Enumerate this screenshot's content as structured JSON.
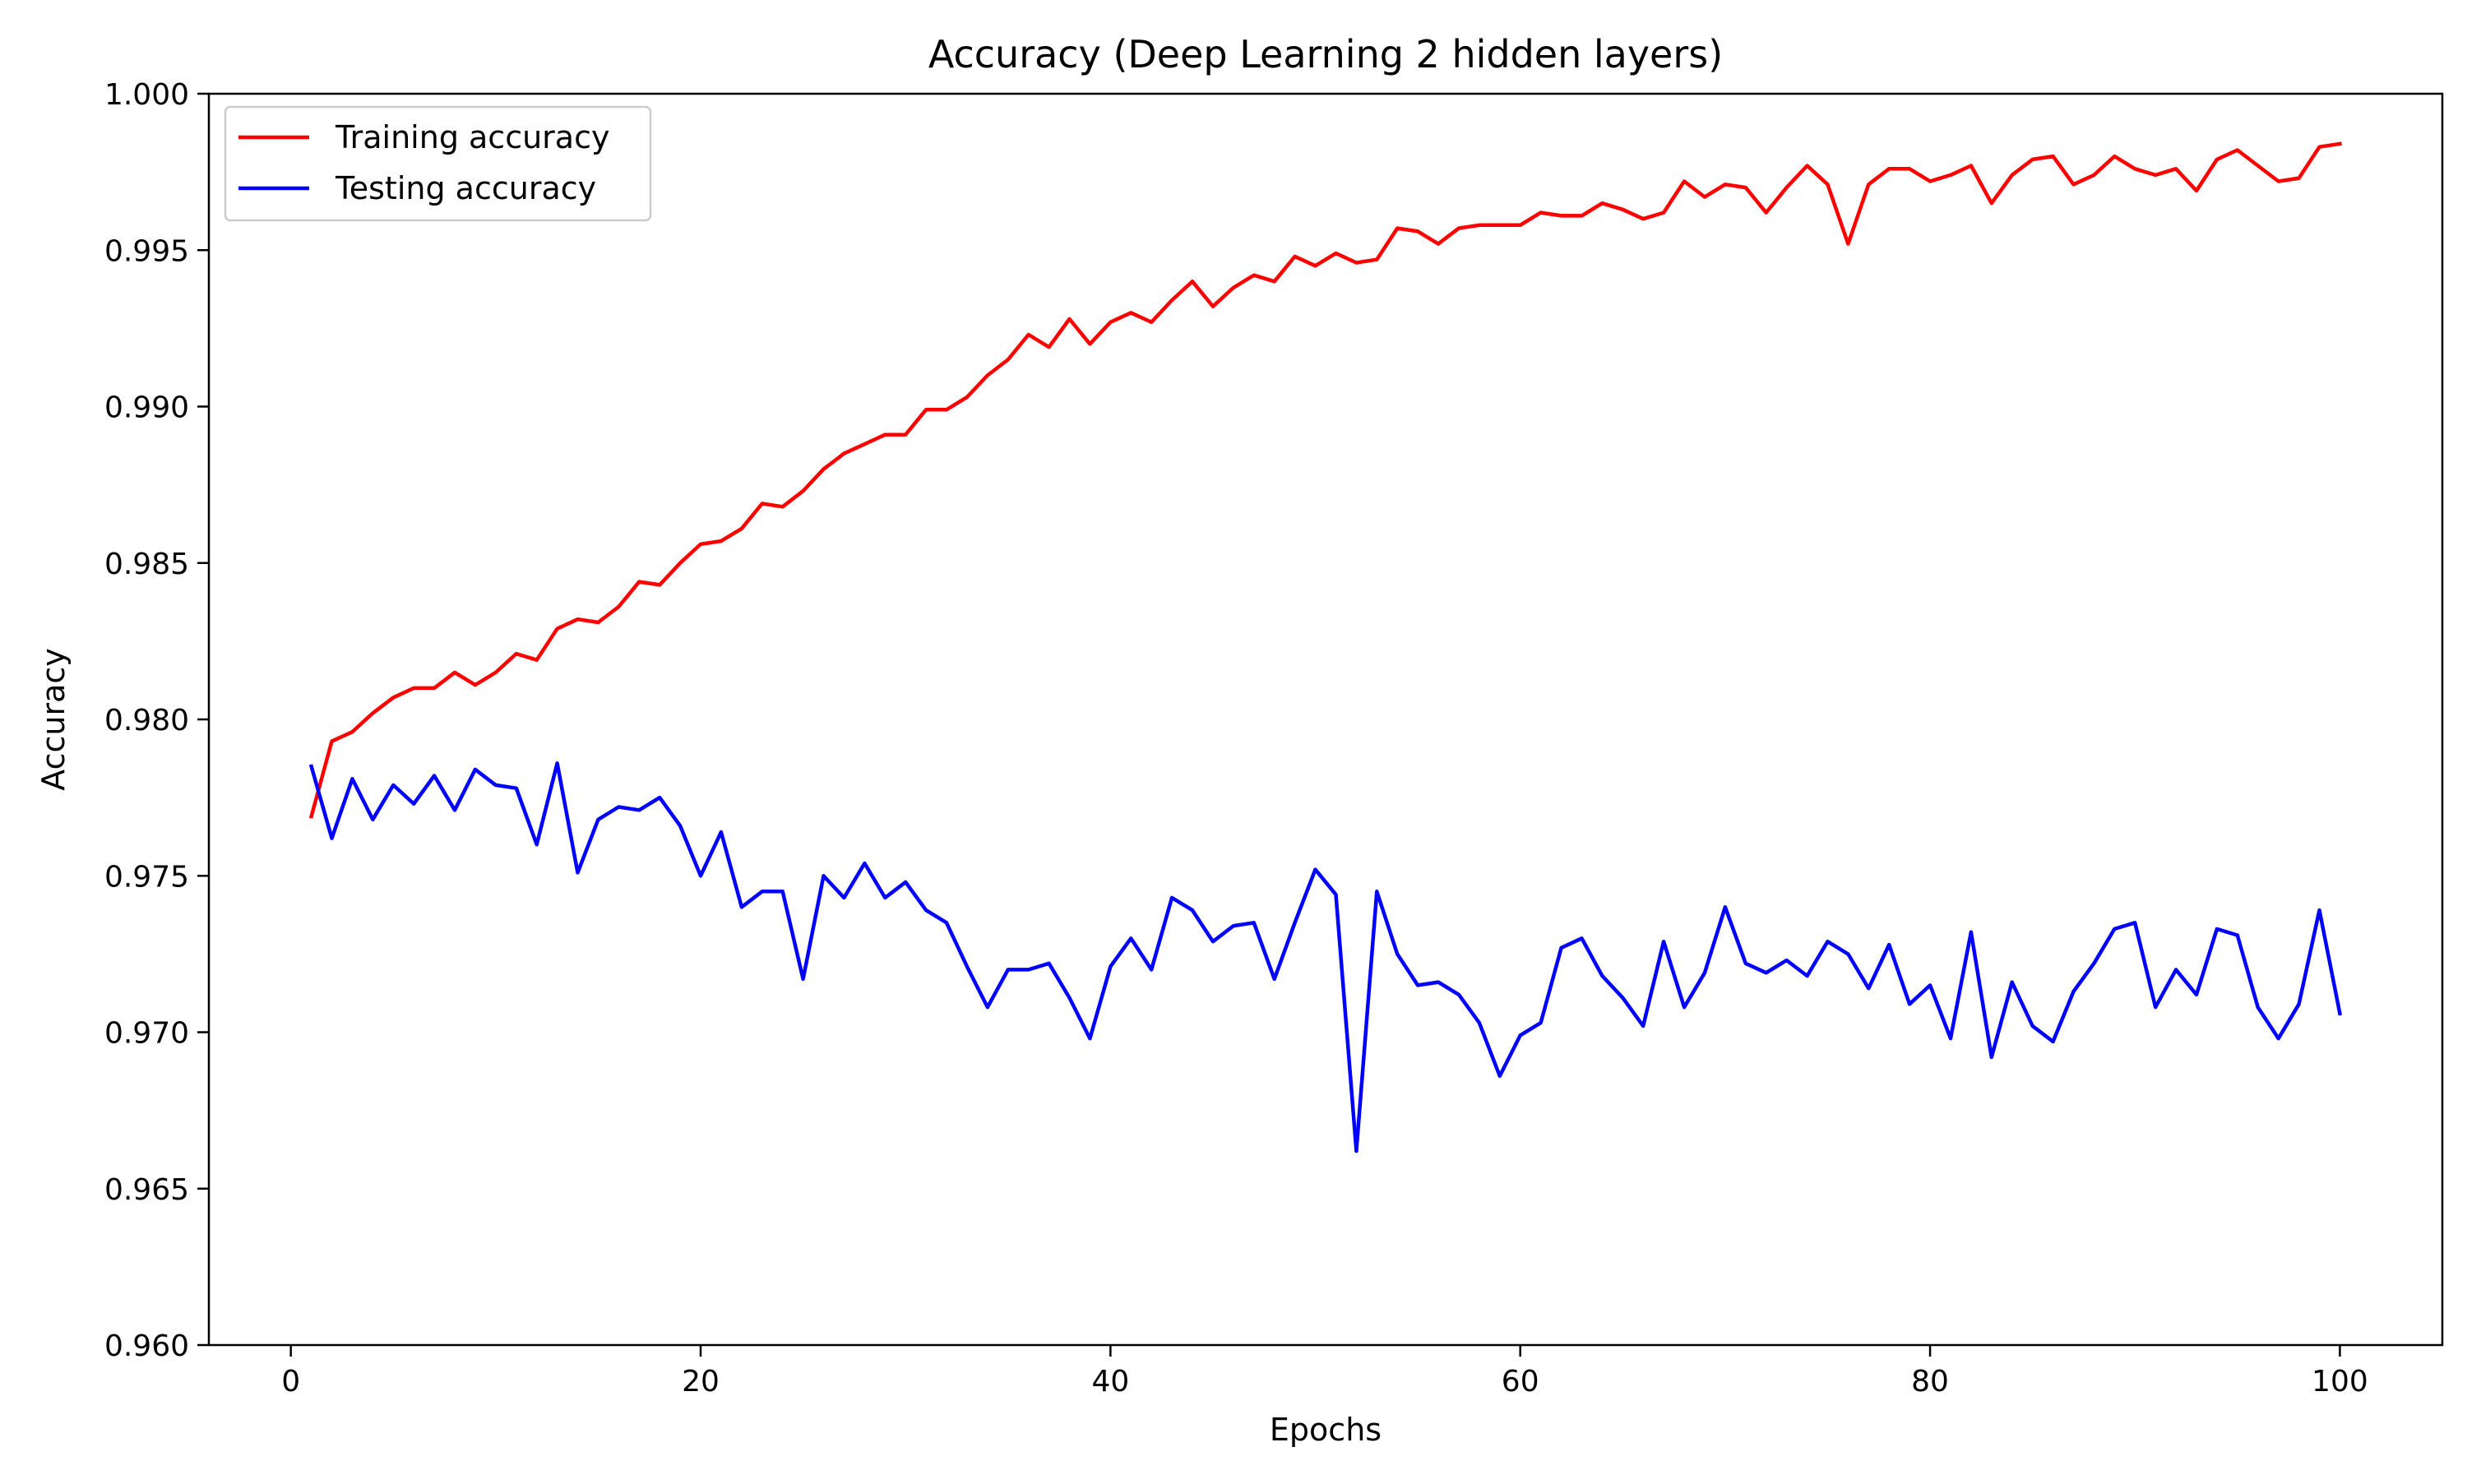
{
  "chart_data": {
    "type": "line",
    "title": "Accuracy (Deep Learning 2 hidden layers)",
    "xlabel": "Epochs",
    "ylabel": "Accuracy",
    "xlim": [
      -4,
      105
    ],
    "ylim": [
      0.96,
      1.0
    ],
    "xticks": [
      0,
      20,
      40,
      60,
      80,
      100
    ],
    "xtick_labels": [
      "0",
      "20",
      "40",
      "60",
      "80",
      "100"
    ],
    "yticks": [
      0.96,
      0.965,
      0.97,
      0.975,
      0.98,
      0.985,
      0.99,
      0.995,
      1.0
    ],
    "ytick_labels": [
      "0.960",
      "0.965",
      "0.970",
      "0.975",
      "0.980",
      "0.985",
      "0.990",
      "0.995",
      "1.000"
    ],
    "grid": false,
    "legend_position": "top-left",
    "x": [
      1,
      2,
      3,
      4,
      5,
      6,
      7,
      8,
      9,
      10,
      11,
      12,
      13,
      14,
      15,
      16,
      17,
      18,
      19,
      20,
      21,
      22,
      23,
      24,
      25,
      26,
      27,
      28,
      29,
      30,
      31,
      32,
      33,
      34,
      35,
      36,
      37,
      38,
      39,
      40,
      41,
      42,
      43,
      44,
      45,
      46,
      47,
      48,
      49,
      50,
      51,
      52,
      53,
      54,
      55,
      56,
      57,
      58,
      59,
      60,
      61,
      62,
      63,
      64,
      65,
      66,
      67,
      68,
      69,
      70,
      71,
      72,
      73,
      74,
      75,
      76,
      77,
      78,
      79,
      80,
      81,
      82,
      83,
      84,
      85,
      86,
      87,
      88,
      89,
      90,
      91,
      92,
      93,
      94,
      95,
      96,
      97,
      98,
      99,
      100
    ],
    "series": [
      {
        "name": "Training accuracy",
        "color": "#ff0000",
        "values": [
          0.9769,
          0.9793,
          0.9796,
          0.9802,
          0.9807,
          0.981,
          0.981,
          0.9815,
          0.9811,
          0.9815,
          0.9821,
          0.9819,
          0.9829,
          0.9832,
          0.9831,
          0.9836,
          0.9844,
          0.9843,
          0.985,
          0.9856,
          0.9857,
          0.9861,
          0.9869,
          0.9868,
          0.9873,
          0.988,
          0.9885,
          0.9888,
          0.9891,
          0.9891,
          0.9899,
          0.9899,
          0.9903,
          0.991,
          0.9915,
          0.9923,
          0.9919,
          0.9928,
          0.992,
          0.9927,
          0.993,
          0.9927,
          0.9934,
          0.994,
          0.9932,
          0.9938,
          0.9942,
          0.994,
          0.9948,
          0.9945,
          0.9949,
          0.9946,
          0.9947,
          0.9957,
          0.9956,
          0.9952,
          0.9957,
          0.9958,
          0.9958,
          0.9958,
          0.9962,
          0.9961,
          0.9961,
          0.9965,
          0.9963,
          0.996,
          0.9962,
          0.9972,
          0.9967,
          0.9971,
          0.997,
          0.9962,
          0.997,
          0.9977,
          0.9971,
          0.9952,
          0.9971,
          0.9976,
          0.9976,
          0.9972,
          0.9974,
          0.9977,
          0.9965,
          0.9974,
          0.9979,
          0.998,
          0.9971,
          0.9974,
          0.998,
          0.9976,
          0.9974,
          0.9976,
          0.9969,
          0.9979,
          0.9982,
          0.9977,
          0.9972,
          0.9973,
          0.9983,
          0.9984
        ]
      },
      {
        "name": "Testing accuracy",
        "color": "#0000ff",
        "values": [
          0.9785,
          0.9762,
          0.9781,
          0.9768,
          0.9779,
          0.9773,
          0.9782,
          0.9771,
          0.9784,
          0.9779,
          0.9778,
          0.976,
          0.9786,
          0.9751,
          0.9768,
          0.9772,
          0.9771,
          0.9775,
          0.9766,
          0.975,
          0.9764,
          0.974,
          0.9745,
          0.9745,
          0.9717,
          0.975,
          0.9743,
          0.9754,
          0.9743,
          0.9748,
          0.9739,
          0.9735,
          0.9721,
          0.9708,
          0.972,
          0.972,
          0.9722,
          0.9711,
          0.9698,
          0.9721,
          0.973,
          0.972,
          0.9743,
          0.9739,
          0.9729,
          0.9734,
          0.9735,
          0.9717,
          0.9735,
          0.9752,
          0.9744,
          0.9662,
          0.9745,
          0.9725,
          0.9715,
          0.9716,
          0.9712,
          0.9703,
          0.9686,
          0.9699,
          0.9703,
          0.9727,
          0.973,
          0.9718,
          0.9711,
          0.9702,
          0.9729,
          0.9708,
          0.9719,
          0.974,
          0.9722,
          0.9719,
          0.9723,
          0.9718,
          0.9729,
          0.9725,
          0.9714,
          0.9728,
          0.9709,
          0.9715,
          0.9698,
          0.9732,
          0.9692,
          0.9716,
          0.9702,
          0.9697,
          0.9713,
          0.9722,
          0.9733,
          0.9735,
          0.9708,
          0.972,
          0.9712,
          0.9733,
          0.9731,
          0.9708,
          0.9698,
          0.9709,
          0.9739,
          0.9706
        ]
      }
    ]
  }
}
